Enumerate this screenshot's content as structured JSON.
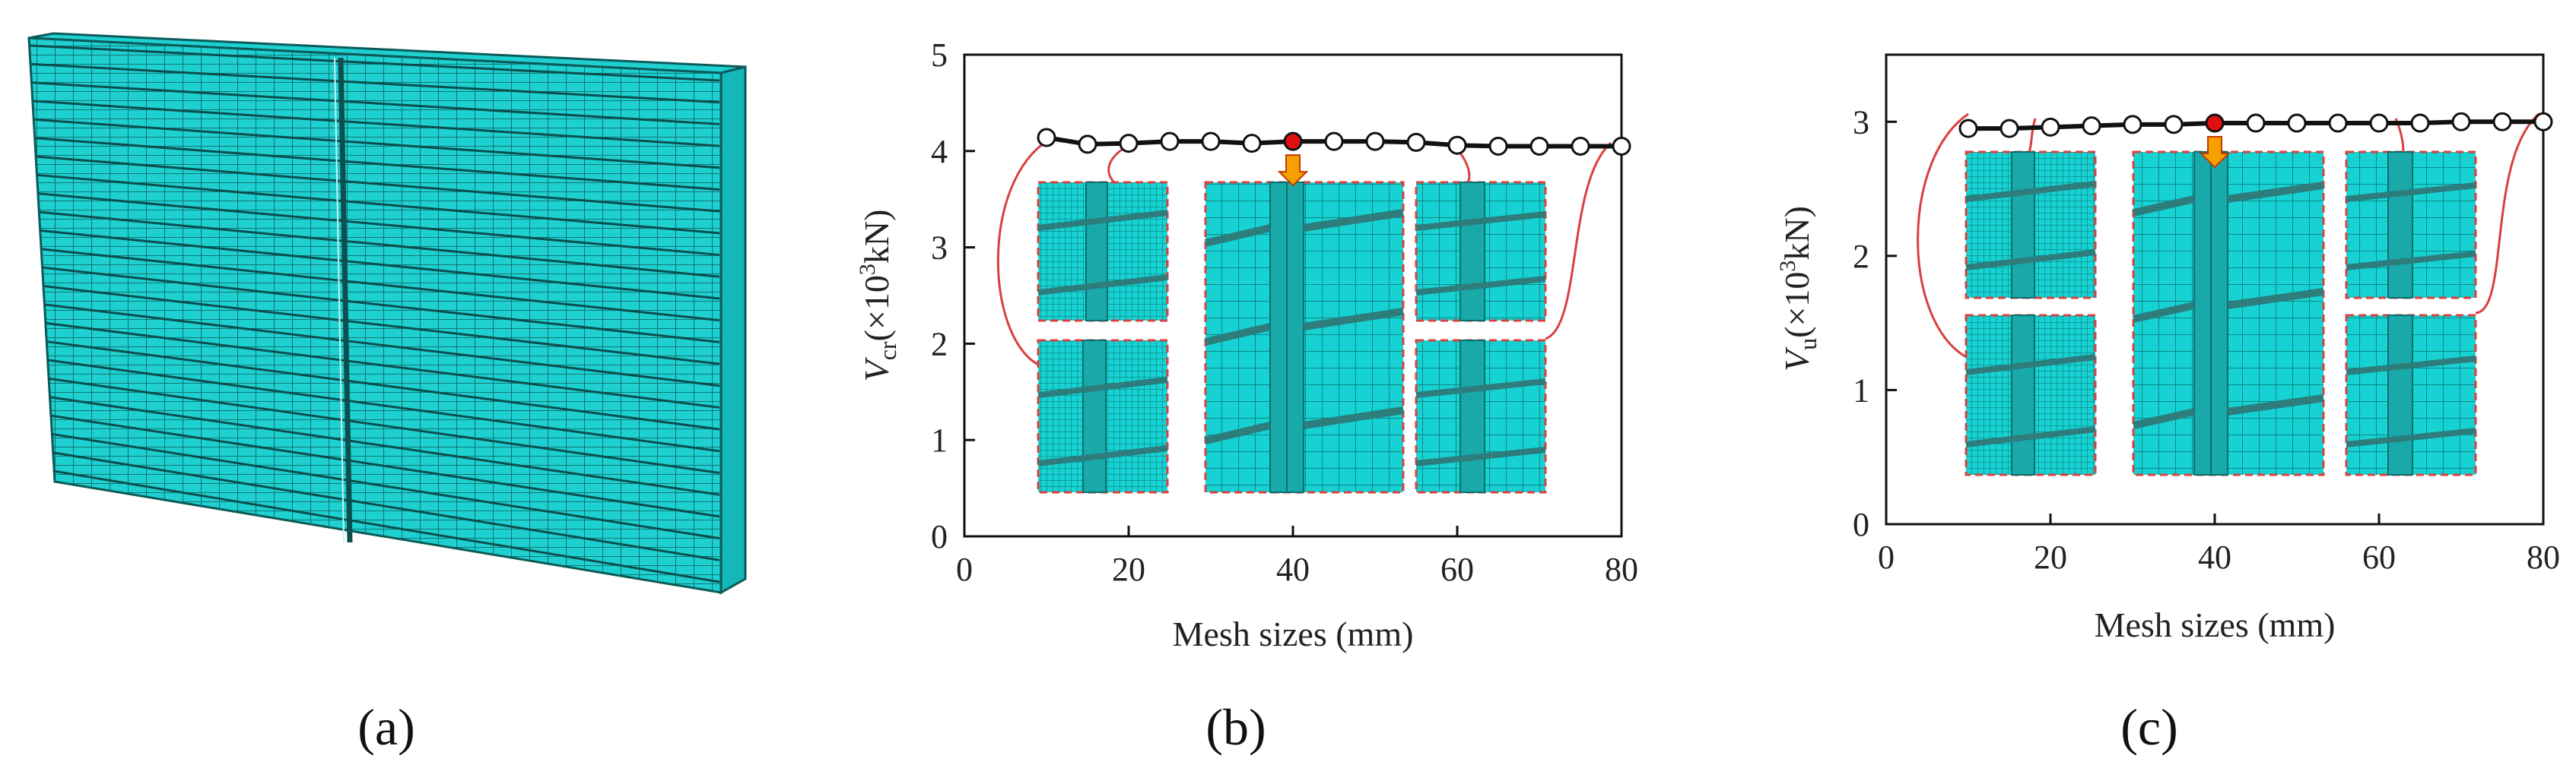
{
  "panel_labels": {
    "a": "(a)",
    "b": "(b)",
    "c": "(c)"
  },
  "colors": {
    "mesh": "#17d2d2",
    "mesh_line": "#0a6f6f",
    "rebar": "#2d7d7d",
    "connector": "#d94040",
    "optimal_marker": "#e01010",
    "arrow": "#f5a000",
    "axis": "#111111"
  },
  "chart_data": [
    {
      "type": "line",
      "panel": "b",
      "title": "",
      "xlabel": "Mesh sizes (mm)",
      "ylabel_main": "V",
      "ylabel_sub": "cr",
      "ylabel_unit_pre": "(×10",
      "ylabel_unit_exp": "3",
      "ylabel_unit_post": "kN)",
      "xlim": [
        0,
        80
      ],
      "ylim": [
        0,
        5
      ],
      "xticks": [
        "0",
        "20",
        "40",
        "60",
        "80"
      ],
      "yticks": [
        "0",
        "1",
        "2",
        "3",
        "4",
        "5"
      ],
      "optimal_x": 40,
      "series": [
        {
          "name": "V_cr",
          "x": [
            10,
            15,
            20,
            25,
            30,
            35,
            40,
            45,
            50,
            55,
            60,
            65,
            70,
            75,
            80
          ],
          "values": [
            4.14,
            4.07,
            4.08,
            4.1,
            4.1,
            4.08,
            4.1,
            4.1,
            4.1,
            4.09,
            4.06,
            4.05,
            4.05,
            4.05,
            4.05
          ]
        }
      ]
    },
    {
      "type": "line",
      "panel": "c",
      "title": "",
      "xlabel": "Mesh sizes (mm)",
      "ylabel_main": "V",
      "ylabel_sub": "u",
      "ylabel_unit_pre": "(×10",
      "ylabel_unit_exp": "3",
      "ylabel_unit_post": "kN)",
      "xlim": [
        0,
        80
      ],
      "ylim": [
        0,
        3.5
      ],
      "xticks": [
        "0",
        "20",
        "40",
        "60",
        "80"
      ],
      "yticks": [
        "0",
        "1",
        "2",
        "3"
      ],
      "optimal_x": 40,
      "series": [
        {
          "name": "V_u",
          "x": [
            10,
            15,
            20,
            25,
            30,
            35,
            40,
            45,
            50,
            55,
            60,
            65,
            70,
            75,
            80
          ],
          "values": [
            2.95,
            2.95,
            2.96,
            2.97,
            2.98,
            2.98,
            2.99,
            2.99,
            2.99,
            2.99,
            2.99,
            2.99,
            3.0,
            3.0,
            3.0
          ]
        }
      ]
    }
  ]
}
